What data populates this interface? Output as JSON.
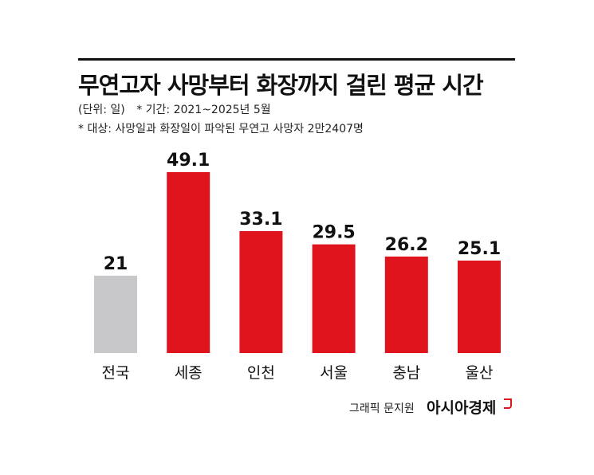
{
  "title": "무연고자 사망부터 화장까지 걸린 평균 시간",
  "unit_note": "(단위: 일)",
  "period_note": "* 기간: 2021~2025년 5월",
  "subject_note": "* 대상: 사망일과 화장일이 파악된 무연고 사망자 2만2407명",
  "credit": "그래픽 문지원",
  "brand": "아시아경제",
  "colors": {
    "national": "#c8c8ca",
    "region": "#e0141d",
    "text": "#111111"
  },
  "chart_data": {
    "type": "bar",
    "title": "무연고자 사망부터 화장까지 걸린 평균 시간",
    "categories": [
      "전국",
      "세종",
      "인천",
      "서울",
      "충남",
      "울산"
    ],
    "values": [
      21,
      49.1,
      33.1,
      29.5,
      26.2,
      25.1
    ],
    "value_labels": [
      "21",
      "49.1",
      "33.1",
      "29.5",
      "26.2",
      "25.1"
    ],
    "unit": "일",
    "xlabel": "",
    "ylabel": "",
    "ylim": [
      0,
      49.1
    ],
    "grid": false,
    "legend": "none"
  }
}
